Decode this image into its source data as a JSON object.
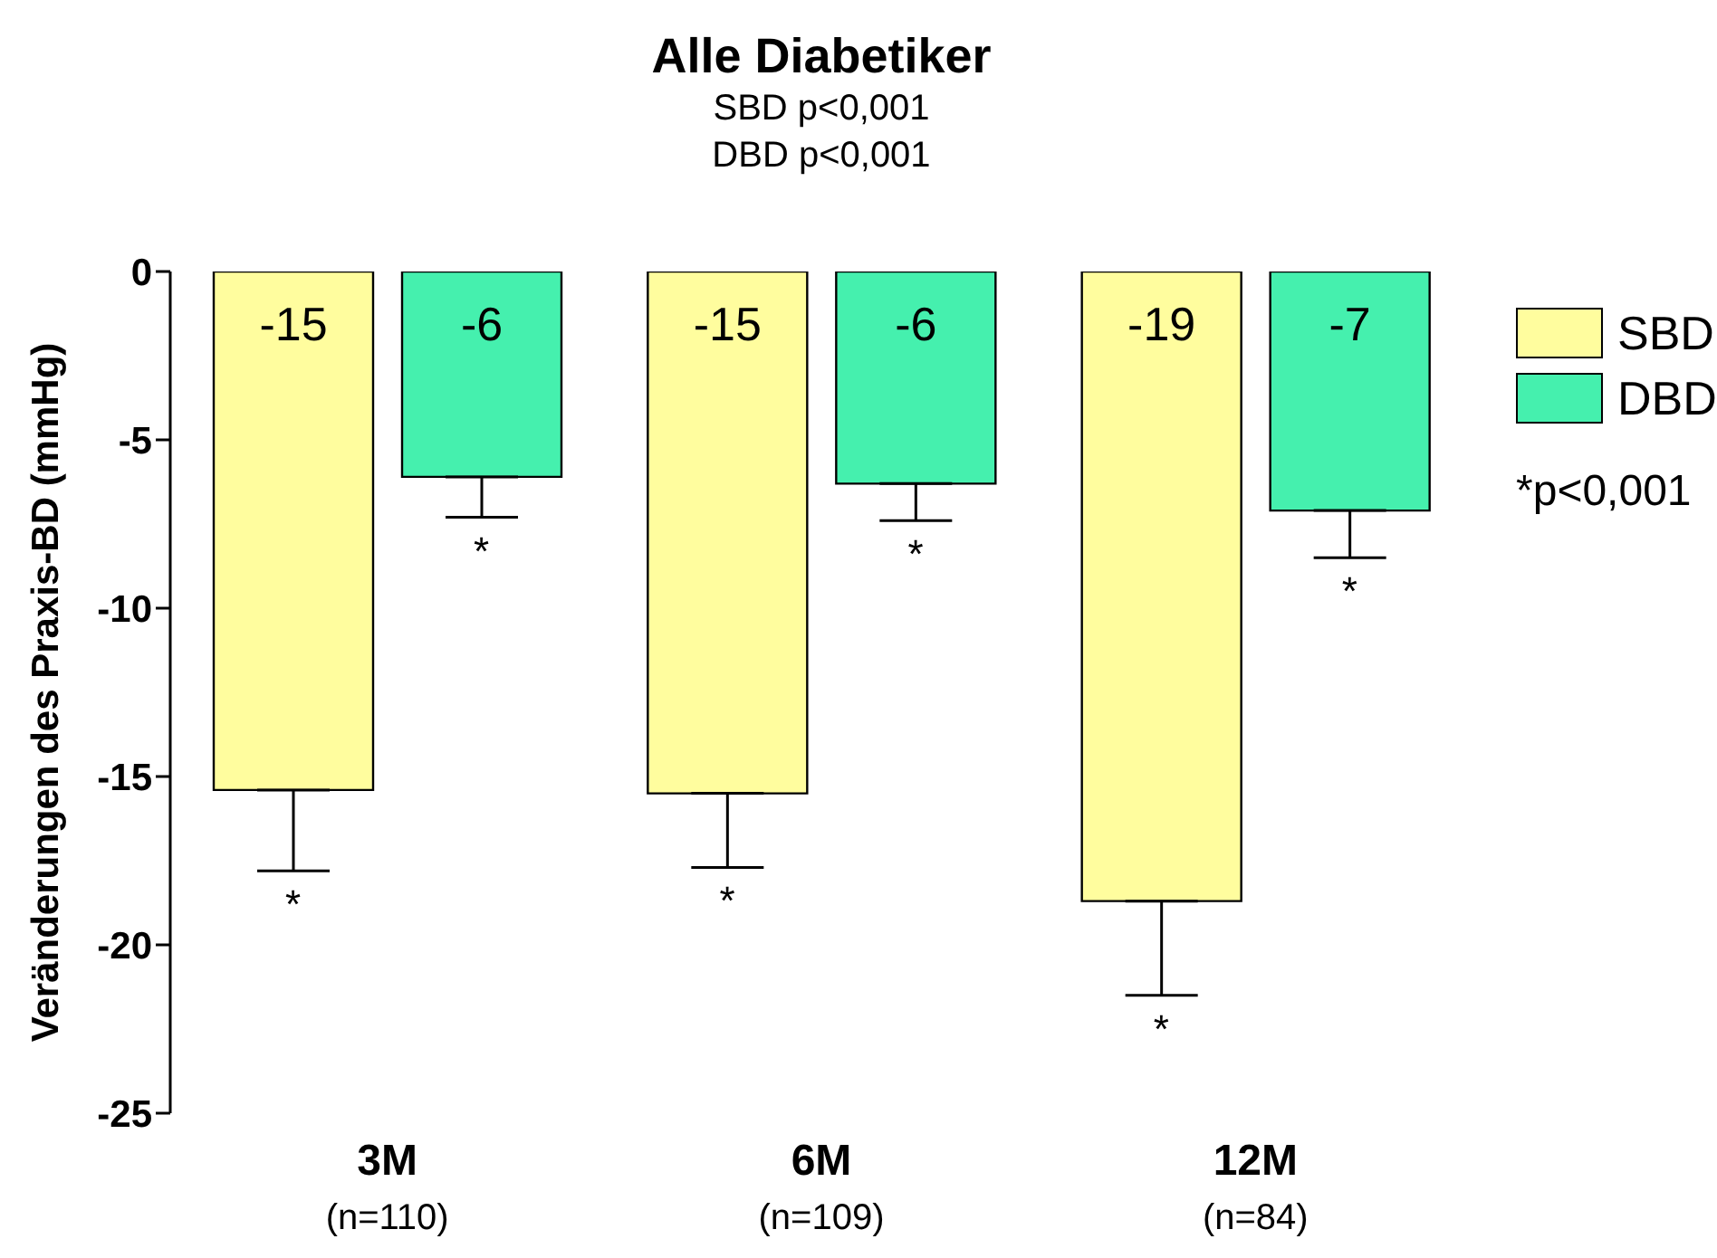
{
  "chart_data": {
    "type": "bar",
    "title": "Alle Diabetiker",
    "subtitle": "SBD p<0,001\nDBD p<0,001",
    "ylabel": "Veränderungen des Praxis-BD (mmHg)",
    "categories": [
      "3M",
      "6M",
      "12M"
    ],
    "series": [
      {
        "name": "SBD",
        "color": "#fffd9e",
        "values": [
          -15.4,
          -15.5,
          -18.7
        ],
        "errors": [
          [
            -17.8,
            -15.4
          ],
          [
            -17.7,
            -15.5
          ],
          [
            -21.5,
            -18.7
          ]
        ],
        "value_labels": [
          "-15",
          "-15",
          "-19"
        ]
      },
      {
        "name": "DBD",
        "color": "#45f0ae",
        "values": [
          -6.1,
          -6.3,
          -7.1
        ],
        "errors": [
          [
            -7.3,
            -6.1
          ],
          [
            -7.4,
            -6.3
          ],
          [
            -8.5,
            -7.1
          ]
        ],
        "value_labels": [
          "-6",
          "-6",
          "-7"
        ]
      }
    ],
    "ylim": [
      -25,
      0
    ],
    "yticks": [
      0,
      -5,
      -10,
      -15,
      -20,
      -25
    ],
    "grid": false,
    "legend": "top right",
    "annotations": [
      "*",
      "*",
      "*",
      "*",
      "*",
      "*",
      "(n=110)",
      "(n=109)",
      "(n=84)",
      "*p<0,001"
    ]
  }
}
